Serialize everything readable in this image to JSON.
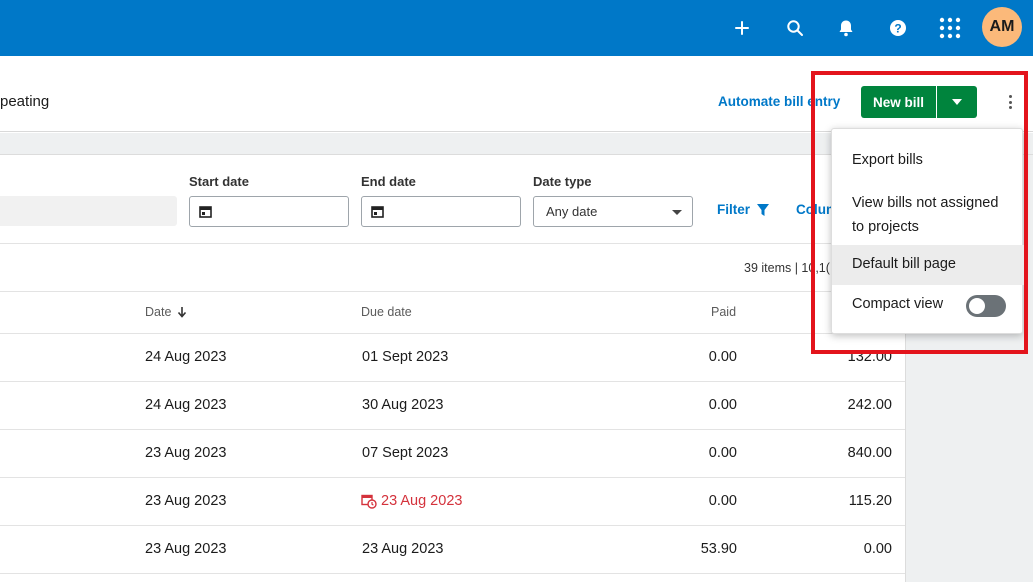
{
  "topbar": {
    "icons": [
      "plus-icon",
      "search-icon",
      "bell-icon",
      "help-icon",
      "apps-grid-icon"
    ],
    "avatar_initials": "AM",
    "color": "#0078c8"
  },
  "header": {
    "partial_title": "peating",
    "automate_link": "Automate bill entry",
    "new_bill_label": "New bill",
    "accent_green": "#00843d"
  },
  "filters": {
    "start_date_label": "Start date",
    "end_date_label": "End date",
    "date_type_label": "Date type",
    "date_type_value": "Any date",
    "filter_label": "Filter",
    "columns_label": "Colum"
  },
  "items_count": "39 items | 10,1(",
  "table": {
    "columns": {
      "date": "Date",
      "due_date": "Due date",
      "paid": "Paid"
    },
    "rows": [
      {
        "date": "24 Aug 2023",
        "due": "01 Sept 2023",
        "paid": "0.00",
        "amount": "132.00",
        "overdue": false
      },
      {
        "date": "24 Aug 2023",
        "due": "30 Aug 2023",
        "paid": "0.00",
        "amount": "242.00",
        "overdue": false
      },
      {
        "date": "23 Aug 2023",
        "due": "07 Sept 2023",
        "paid": "0.00",
        "amount": "840.00",
        "overdue": false
      },
      {
        "date": "23 Aug 2023",
        "due": "23 Aug 2023",
        "paid": "0.00",
        "amount": "115.20",
        "overdue": true
      },
      {
        "date": "23 Aug 2023",
        "due": "23 Aug 2023",
        "paid": "53.90",
        "amount": "0.00",
        "overdue": false
      }
    ]
  },
  "menu": {
    "export_bills": "Export bills",
    "view_bills_line1": "View bills not assigned",
    "view_bills_line2": "to projects",
    "default_bill_page": "Default bill page",
    "compact_view": "Compact view",
    "compact_view_on": false
  },
  "colors": {
    "overdue_red": "#d4323c",
    "highlight_red": "#e3141c"
  }
}
